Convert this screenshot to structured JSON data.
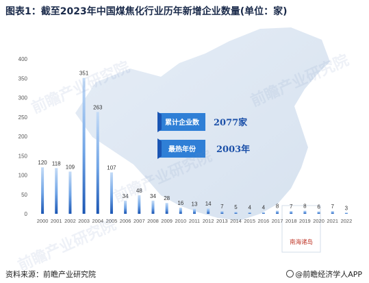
{
  "title": "图表1：截至2023年中国煤焦化行业历年新增企业数量(单位：家)",
  "source": "资料来源：前瞻产业研究院",
  "brand": "@前瞻经济学人APP",
  "watermark": "前瞻产业研究院",
  "map_label": "南海诸岛",
  "callouts": [
    {
      "label": "累计企业数",
      "value": "2077家"
    },
    {
      "label": "最热年份",
      "value": "2003年"
    }
  ],
  "colors": {
    "bar_dark": "#1a5bb8",
    "bar_light": "#bcd6f5",
    "axis_text": "#555555",
    "callout_bg": "#2f7fd6"
  },
  "chart_data": {
    "type": "bar",
    "categories": [
      "2000",
      "2001",
      "2002",
      "2003",
      "2004",
      "2005",
      "2006",
      "2007",
      "2008",
      "2009",
      "2010",
      "2011",
      "2012",
      "2013",
      "2014",
      "2015",
      "2016",
      "2017",
      "2018",
      "2019",
      "2020",
      "2021",
      "2022"
    ],
    "values": [
      120,
      118,
      109,
      351,
      263,
      107,
      34,
      48,
      34,
      28,
      16,
      13,
      14,
      7,
      5,
      4,
      4,
      8,
      7,
      8,
      6,
      7,
      3
    ],
    "ylim": [
      0,
      400
    ],
    "yticks": [
      0,
      50,
      100,
      150,
      200,
      250,
      300,
      350,
      400
    ],
    "grid": false,
    "legend": "none"
  }
}
